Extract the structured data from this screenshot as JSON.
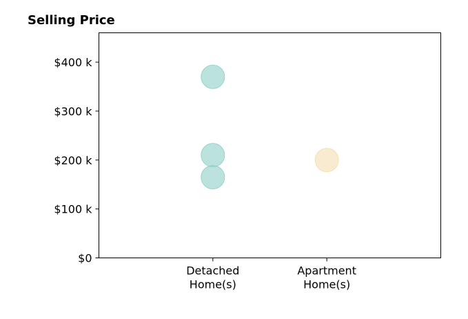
{
  "chart_data": {
    "type": "scatter",
    "title": "Selling Price",
    "xlabel": "",
    "ylabel": "",
    "categories": [
      [
        "Detached",
        "Home(s)"
      ],
      [
        "Apartment",
        "Home(s)"
      ]
    ],
    "x_range": [
      0,
      3
    ],
    "category_positions": [
      1,
      2
    ],
    "ylim": [
      0,
      460000
    ],
    "y_ticks": [
      0,
      100000,
      200000,
      300000,
      400000
    ],
    "y_tick_labels": [
      "$0",
      "$100 k",
      "$200 k",
      "$300 k",
      "$400 k"
    ],
    "grid": false,
    "points": [
      {
        "category": "Detached Home(s)",
        "x": 1,
        "y": 370000,
        "color": "#8fcfc8"
      },
      {
        "category": "Detached Home(s)",
        "x": 1,
        "y": 210000,
        "color": "#8fcfc8"
      },
      {
        "category": "Detached Home(s)",
        "x": 1,
        "y": 165000,
        "color": "#8fcfc8"
      },
      {
        "category": "Apartment Home(s)",
        "x": 2,
        "y": 200000,
        "color": "#f5deb0"
      }
    ]
  }
}
